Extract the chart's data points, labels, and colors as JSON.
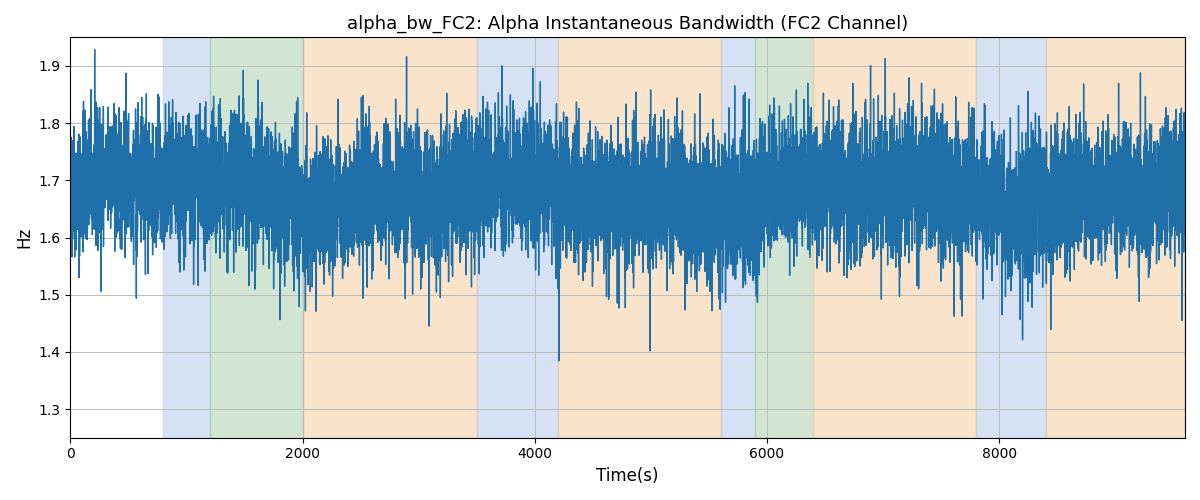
{
  "title": "alpha_bw_FC2: Alpha Instantaneous Bandwidth (FC2 Channel)",
  "xlabel": "Time(s)",
  "ylabel": "Hz",
  "xlim": [
    0,
    9600
  ],
  "ylim": [
    1.25,
    1.95
  ],
  "yticks": [
    1.3,
    1.4,
    1.5,
    1.6,
    1.7,
    1.8,
    1.9
  ],
  "xticks": [
    0,
    2000,
    4000,
    6000,
    8000
  ],
  "line_color": "#1f6fa8",
  "line_width": 1.0,
  "background_color": "#ffffff",
  "grid_color": "#bbbbbb",
  "seed": 42,
  "n_points": 9600,
  "base_mean": 1.68,
  "base_std": 0.06,
  "noise_spike_prob": 0.03,
  "noise_spike_scale": 0.15,
  "bands": [
    {
      "start": 800,
      "end": 1200,
      "color": "#aec6e8",
      "alpha": 0.5
    },
    {
      "start": 1200,
      "end": 2000,
      "color": "#90c090",
      "alpha": 0.4
    },
    {
      "start": 2000,
      "end": 3500,
      "color": "#f5c897",
      "alpha": 0.5
    },
    {
      "start": 3500,
      "end": 4200,
      "color": "#aec6e8",
      "alpha": 0.5
    },
    {
      "start": 4200,
      "end": 5600,
      "color": "#f5c897",
      "alpha": 0.5
    },
    {
      "start": 5600,
      "end": 5900,
      "color": "#aec6e8",
      "alpha": 0.5
    },
    {
      "start": 5900,
      "end": 6400,
      "color": "#90c090",
      "alpha": 0.4
    },
    {
      "start": 6400,
      "end": 7800,
      "color": "#f5c897",
      "alpha": 0.5
    },
    {
      "start": 7800,
      "end": 8400,
      "color": "#aec6e8",
      "alpha": 0.5
    },
    {
      "start": 8400,
      "end": 9600,
      "color": "#f5c897",
      "alpha": 0.5
    }
  ]
}
